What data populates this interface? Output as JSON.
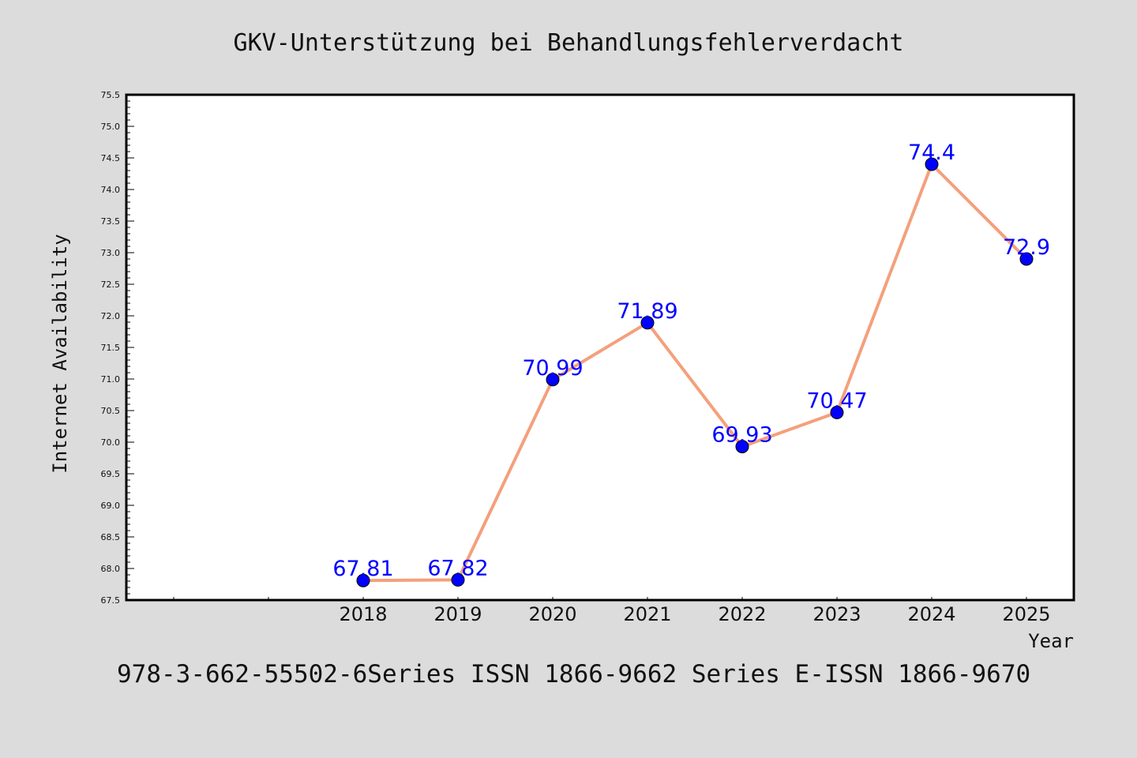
{
  "colors": {
    "background": "#dcdcdc",
    "plot_background": "#ffffff",
    "line": "#f4a07c",
    "marker": "#0000ff",
    "data_label": "#0000ff",
    "frame": "#000000"
  },
  "footer": "978-3-662-55502-6Series ISSN 1866-9662 Series E-ISSN 1866-9670",
  "chart_data": {
    "type": "line",
    "title": "GKV-Unterstützung bei Behandlungsfehlerverdacht",
    "xlabel": "Year",
    "ylabel": "Internet Availability",
    "ylim": [
      67.5,
      75.5
    ],
    "ytick_step": 0.5,
    "yticks": [
      "67.5",
      "68.0",
      "68.5",
      "69.0",
      "69.5",
      "70.0",
      "70.5",
      "71.0",
      "71.5",
      "72.0",
      "72.5",
      "73.0",
      "73.5",
      "74.0",
      "74.5",
      "75.0",
      "75.5"
    ],
    "xlim": [
      2015.5,
      2025.5
    ],
    "categories": [
      "2018",
      "2019",
      "2020",
      "2021",
      "2022",
      "2023",
      "2024",
      "2025"
    ],
    "x": [
      2018,
      2019,
      2020,
      2021,
      2022,
      2023,
      2024,
      2025
    ],
    "series": [
      {
        "values": [
          67.81,
          67.82,
          70.99,
          71.89,
          69.93,
          70.47,
          74.4,
          72.9
        ],
        "labels": [
          "67.81",
          "67.82",
          "70.99",
          "71.89",
          "69.93",
          "70.47",
          "74.4",
          "72.9"
        ]
      }
    ],
    "grid": false,
    "legend": "none"
  }
}
